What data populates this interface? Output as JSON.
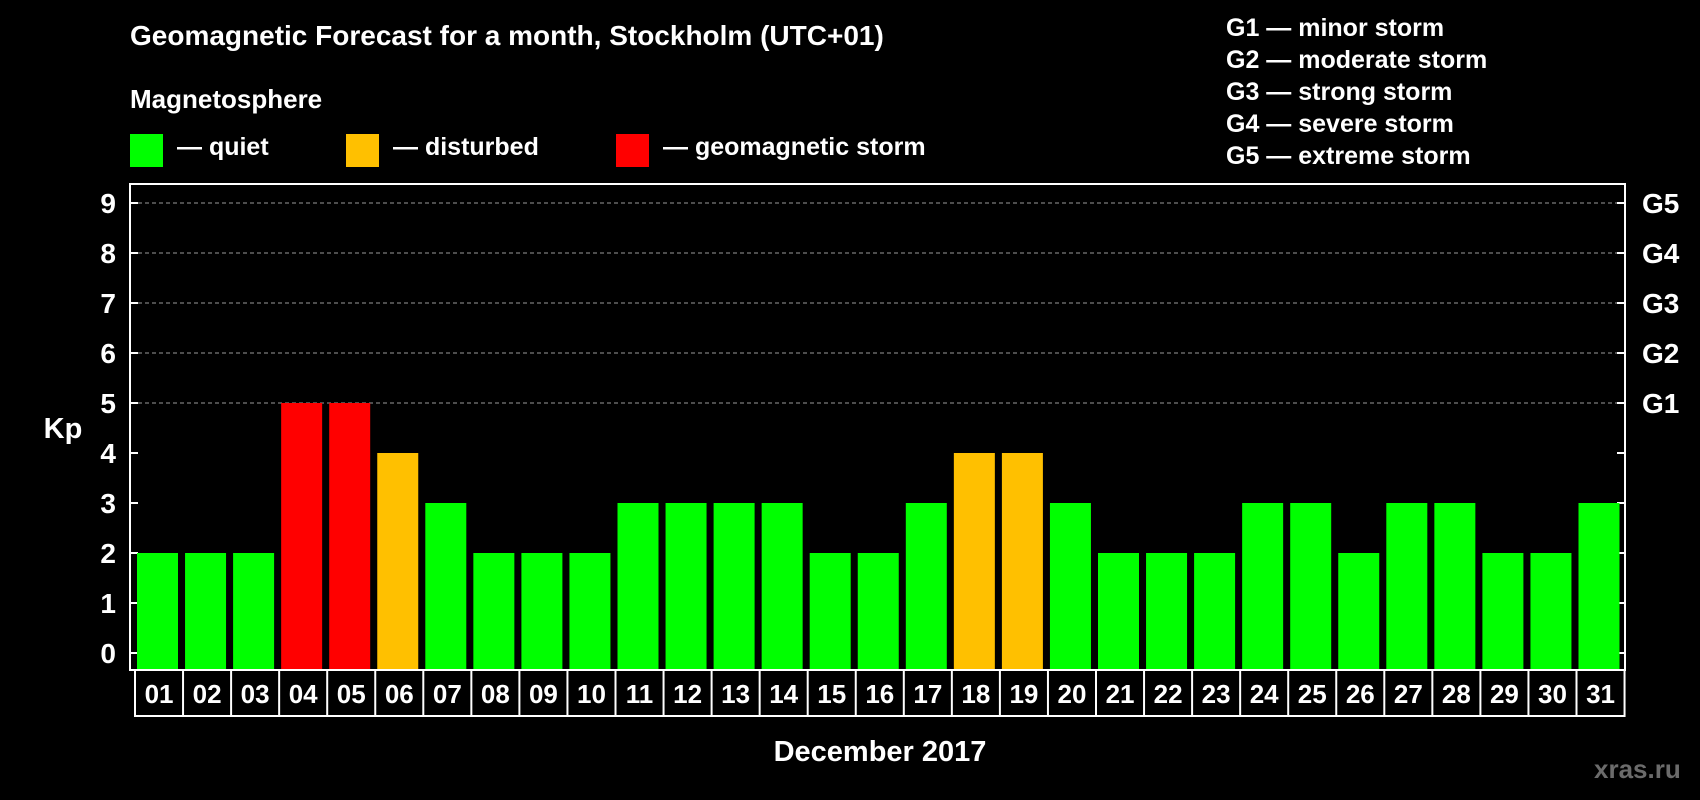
{
  "title": "Geomagnetic Forecast for a month, Stockholm (UTC+01)",
  "legend": {
    "title": "Magnetosphere",
    "items": [
      {
        "label": "— quiet",
        "color": "#00ff00"
      },
      {
        "label": "— disturbed",
        "color": "#ffc000"
      },
      {
        "label": "— geomagnetic storm",
        "color": "#ff0000"
      }
    ]
  },
  "storm_scale": [
    "G1 — minor storm",
    "G2 — moderate storm",
    "G3 — strong storm",
    "G4 — severe storm",
    "G5 — extreme storm"
  ],
  "watermark": "xras.ru",
  "chart_data": {
    "type": "bar",
    "xlabel": "December 2017",
    "ylabel": "Kp",
    "ylim": [
      0,
      9
    ],
    "yticks": [
      0,
      1,
      2,
      3,
      4,
      5,
      6,
      7,
      8,
      9
    ],
    "right_axis_labels": [
      {
        "kp": 5,
        "label": "G1"
      },
      {
        "kp": 6,
        "label": "G2"
      },
      {
        "kp": 7,
        "label": "G3"
      },
      {
        "kp": 8,
        "label": "G4"
      },
      {
        "kp": 9,
        "label": "G5"
      }
    ],
    "grid": "dashed horizontal at Kp 5-9",
    "categories": [
      "01",
      "02",
      "03",
      "04",
      "05",
      "06",
      "07",
      "08",
      "09",
      "10",
      "11",
      "12",
      "13",
      "14",
      "15",
      "16",
      "17",
      "18",
      "19",
      "20",
      "21",
      "22",
      "23",
      "24",
      "25",
      "26",
      "27",
      "28",
      "29",
      "30",
      "31"
    ],
    "values": [
      2,
      2,
      2,
      5,
      5,
      4,
      3,
      2,
      2,
      2,
      3,
      3,
      3,
      3,
      2,
      2,
      3,
      4,
      4,
      3,
      2,
      2,
      2,
      3,
      3,
      2,
      3,
      3,
      2,
      2,
      3
    ],
    "colors": {
      "quiet": "#00ff00",
      "disturbed": "#ffc000",
      "storm": "#ff0000"
    }
  }
}
